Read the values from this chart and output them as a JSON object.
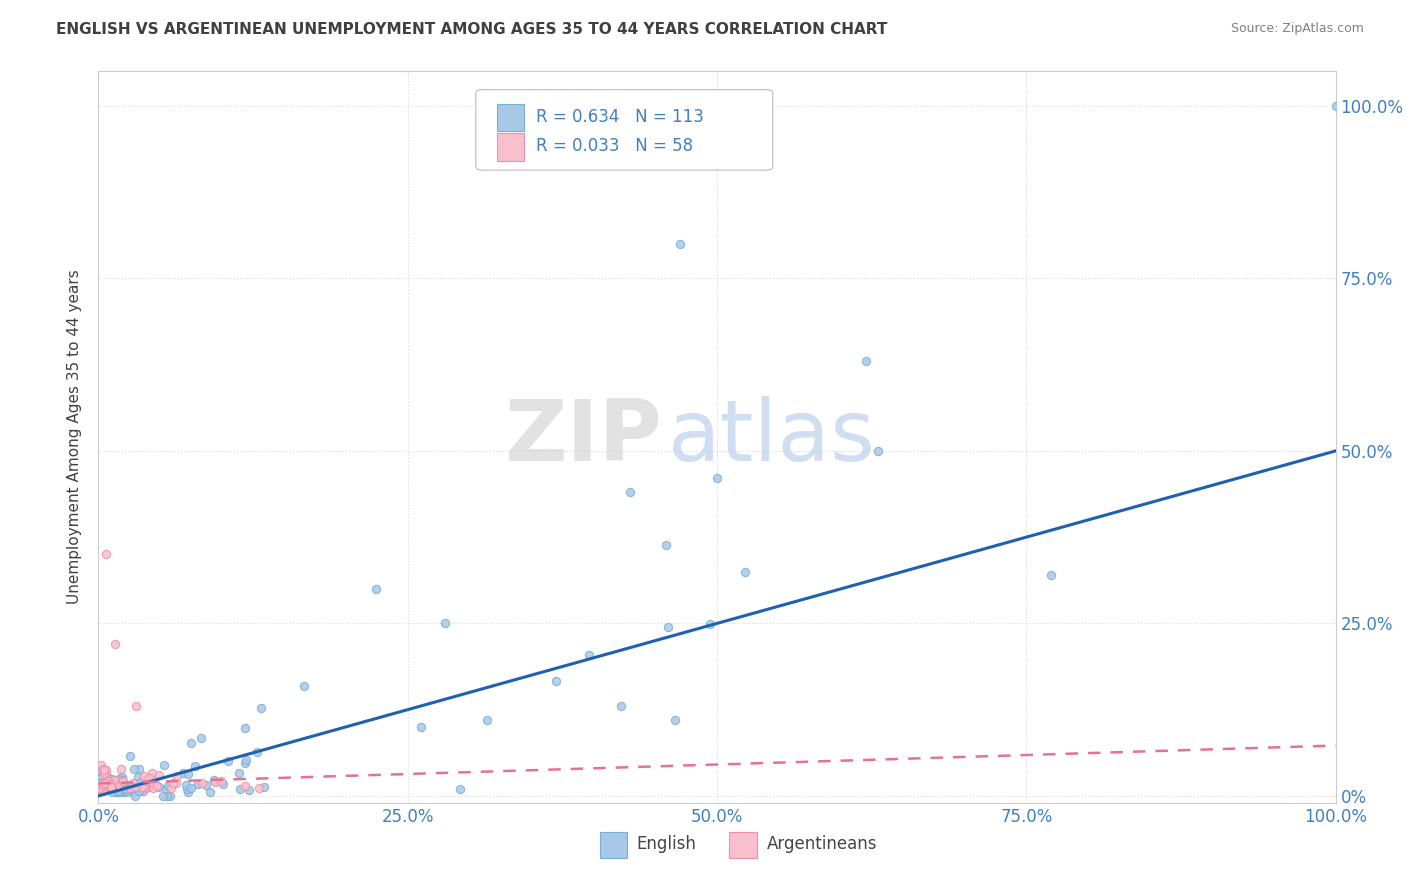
{
  "title": "ENGLISH VS ARGENTINEAN UNEMPLOYMENT AMONG AGES 35 TO 44 YEARS CORRELATION CHART",
  "source": "Source: ZipAtlas.com",
  "ylabel": "Unemployment Among Ages 35 to 44 years",
  "xlim": [
    0,
    1.0
  ],
  "ylim": [
    -0.01,
    1.05
  ],
  "xtick_positions": [
    0,
    0.25,
    0.5,
    0.75,
    1.0
  ],
  "xticklabels": [
    "0.0%",
    "25.0%",
    "50.0%",
    "75.0%",
    "100.0%"
  ],
  "ytick_positions": [
    0,
    0.25,
    0.5,
    0.75,
    1.0
  ],
  "ytick_labels_right": [
    "0%",
    "25.0%",
    "50.0%",
    "75.0%",
    "100.0%"
  ],
  "english_R": 0.634,
  "english_N": 113,
  "argentinean_R": 0.033,
  "argentinean_N": 58,
  "legend_label1": "English",
  "legend_label2": "Argentineans",
  "english_color": "#a8c8e8",
  "english_edge_color": "#7aafd4",
  "argentinean_color": "#f8c0cc",
  "argentinean_edge_color": "#f090a8",
  "english_line_color": "#2060b0",
  "argentinean_line_color": "#e87090",
  "watermark_zip": "ZIP",
  "watermark_atlas": "atlas",
  "watermark_zip_color": "#d0d0d0",
  "watermark_atlas_color": "#b0c8e8",
  "background_color": "#ffffff",
  "grid_color": "#d8d8d8",
  "title_color": "#404040",
  "source_color": "#808080",
  "tick_color": "#4080c0",
  "axis_label_color": "#404040",
  "eng_slope": 0.5,
  "eng_intercept": 0.0,
  "arg_slope": 0.055,
  "arg_intercept": 0.018
}
